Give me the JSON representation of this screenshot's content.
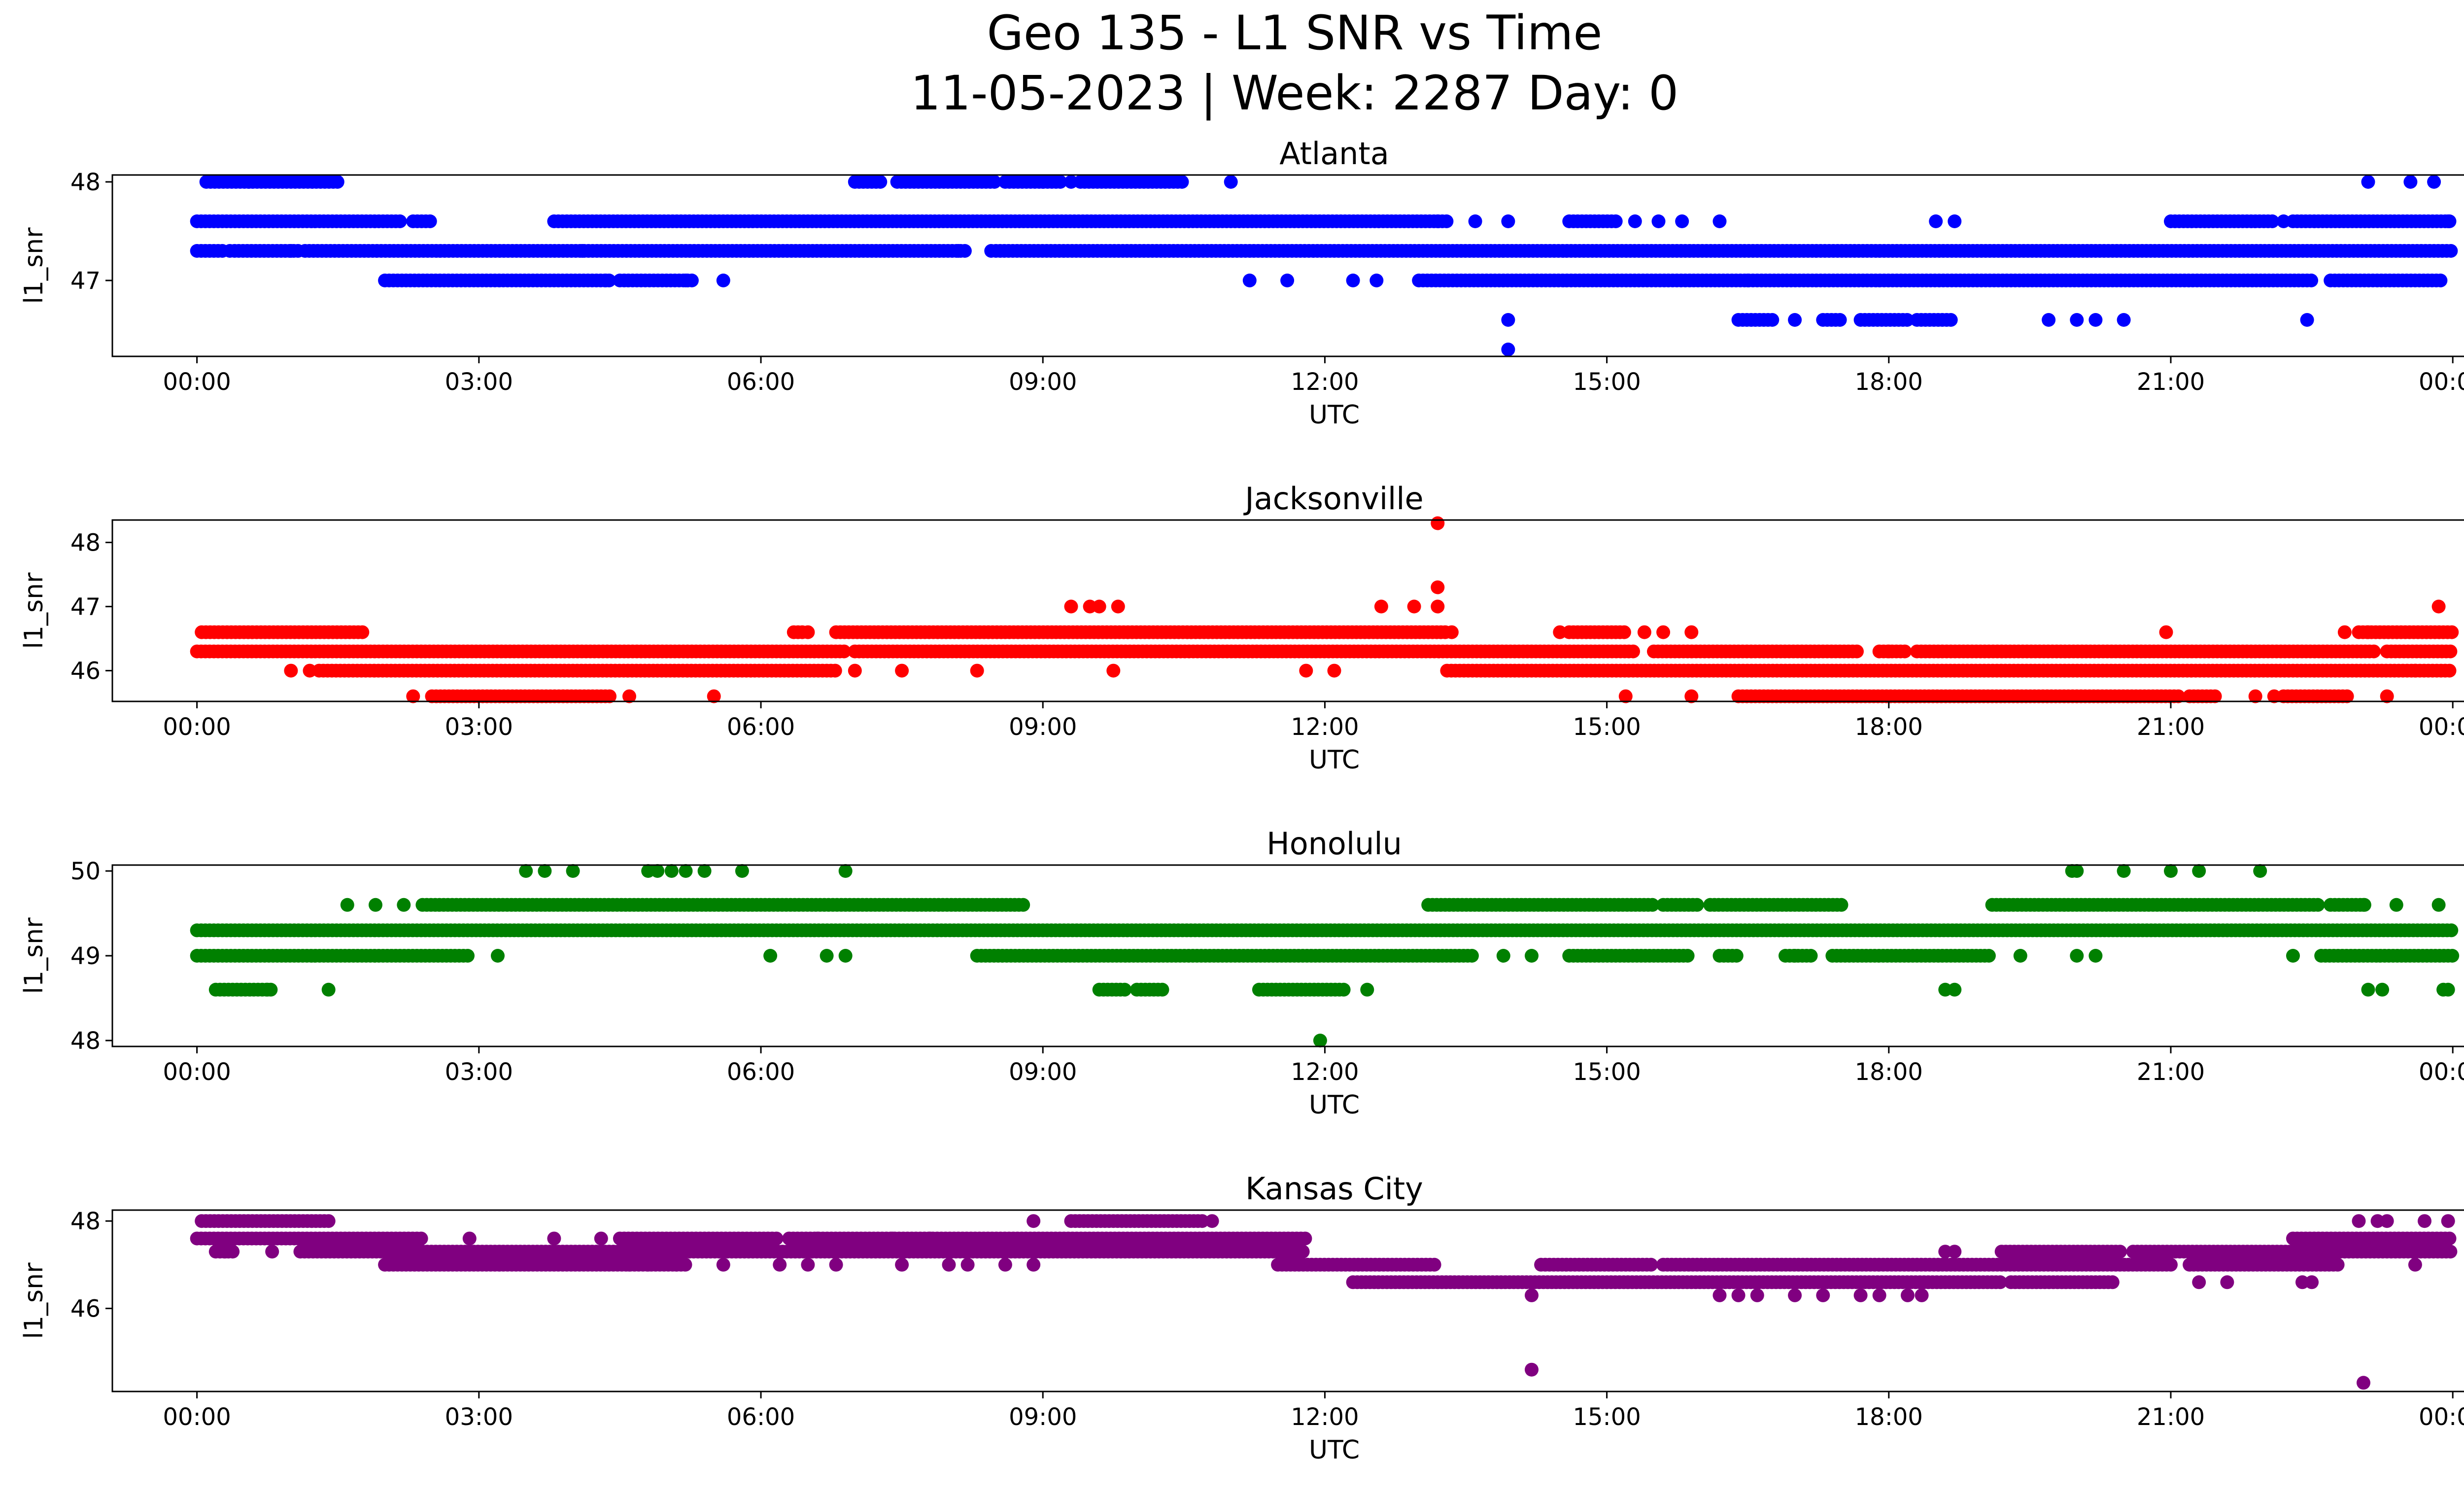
{
  "figure": {
    "title_line1": "Geo 135 - L1 SNR vs Time",
    "title_line2": "11-05-2023 | Week: 2287 Day: 0"
  },
  "chart_data": [
    {
      "type": "scatter",
      "title": "Atlanta",
      "xlabel": "UTC",
      "ylabel": "l1_snr",
      "color": "#0000ff",
      "xlim": [
        -0.9,
        25.1
      ],
      "ylim": [
        46.23,
        48.07
      ],
      "x_ticks": [
        "00:00",
        "03:00",
        "06:00",
        "09:00",
        "12:00",
        "15:00",
        "18:00",
        "21:00",
        "00:00"
      ],
      "y_ticks": [
        47,
        48
      ],
      "bands": [
        {
          "y": 48.0,
          "ranges": [
            [
              0.1,
              1.5
            ],
            [
              7.0,
              7.3
            ],
            [
              7.45,
              8.5
            ],
            [
              8.6,
              9.2
            ],
            [
              9.4,
              10.5
            ]
          ]
        },
        {
          "y": 47.6,
          "ranges": [
            [
              0,
              2.2
            ],
            [
              2.3,
              2.5
            ],
            [
              3.8,
              13.3
            ],
            [
              14.6,
              15.1
            ],
            [
              21.0,
              22.1
            ],
            [
              22.3,
              24.0
            ]
          ]
        },
        {
          "y": 47.3,
          "ranges": [
            [
              0,
              0.3
            ],
            [
              0.4,
              1.1
            ],
            [
              1.15,
              8.2
            ],
            [
              8.5,
              24.0
            ]
          ]
        },
        {
          "y": 47.0,
          "ranges": [
            [
              2.0,
              4.4
            ],
            [
              4.5,
              5.3
            ],
            [
              13.0,
              22.5
            ],
            [
              22.7,
              23.9
            ]
          ]
        },
        {
          "y": 46.6,
          "ranges": [
            [
              16.4,
              16.8
            ],
            [
              17.3,
              17.5
            ],
            [
              17.7,
              18.2
            ],
            [
              18.3,
              18.7
            ]
          ]
        }
      ],
      "points": [
        [
          0.35,
          47.3
        ],
        [
          0.55,
          48.0
        ],
        [
          8.1,
          47.3
        ],
        [
          8.45,
          47.3
        ],
        [
          9.0,
          48.0
        ],
        [
          9.3,
          48.0
        ],
        [
          11.0,
          48.0
        ],
        [
          11.2,
          47.0
        ],
        [
          11.6,
          47.0
        ],
        [
          12.3,
          47.0
        ],
        [
          12.55,
          47.0
        ],
        [
          13.2,
          47.6
        ],
        [
          13.6,
          47.6
        ],
        [
          13.95,
          47.6
        ],
        [
          13.95,
          46.6
        ],
        [
          13.95,
          46.3
        ],
        [
          15.3,
          47.6
        ],
        [
          15.55,
          47.6
        ],
        [
          15.8,
          47.6
        ],
        [
          16.2,
          47.6
        ],
        [
          16.5,
          47.0
        ],
        [
          17.0,
          46.6
        ],
        [
          18.5,
          47.6
        ],
        [
          18.7,
          47.6
        ],
        [
          19.7,
          46.6
        ],
        [
          20.0,
          46.6
        ],
        [
          20.2,
          46.6
        ],
        [
          20.5,
          46.6
        ],
        [
          22.45,
          46.6
        ],
        [
          22.2,
          47.6
        ],
        [
          23.1,
          48.0
        ],
        [
          23.55,
          48.0
        ],
        [
          23.8,
          48.0
        ],
        [
          5.6,
          47.0
        ],
        [
          5.2,
          47.0
        ],
        [
          4.1,
          47.3
        ],
        [
          1.0,
          47.3
        ],
        [
          4.35,
          47.0
        ],
        [
          23.95,
          47.6
        ]
      ]
    },
    {
      "type": "scatter",
      "title": "Jacksonville",
      "xlabel": "UTC",
      "ylabel": "l1_snr",
      "color": "#ff0000",
      "xlim": [
        -0.9,
        25.1
      ],
      "ylim": [
        45.52,
        48.35
      ],
      "x_ticks": [
        "00:00",
        "03:00",
        "06:00",
        "09:00",
        "12:00",
        "15:00",
        "18:00",
        "21:00",
        "00:00"
      ],
      "y_ticks": [
        46,
        47,
        48
      ],
      "bands": [
        {
          "y": 46.6,
          "ranges": [
            [
              0.05,
              1.8
            ],
            [
              6.35,
              6.45
            ],
            [
              6.8,
              13.3
            ],
            [
              14.6,
              15.2
            ],
            [
              23.0,
              24.0
            ]
          ]
        },
        {
          "y": 46.3,
          "ranges": [
            [
              0,
              6.9
            ],
            [
              7.0,
              15.3
            ],
            [
              15.5,
              17.7
            ],
            [
              17.9,
              18.2
            ],
            [
              18.3,
              23.2
            ],
            [
              23.3,
              24.0
            ]
          ]
        },
        {
          "y": 46.0,
          "ranges": [
            [
              1.3,
              6.8
            ],
            [
              13.3,
              24.0
            ]
          ]
        },
        {
          "y": 45.6,
          "ranges": [
            [
              2.5,
              4.4
            ],
            [
              16.4,
              21.1
            ],
            [
              21.2,
              21.5
            ],
            [
              22.2,
              22.9
            ]
          ]
        }
      ],
      "points": [
        [
          9.3,
          47.0
        ],
        [
          9.5,
          47.0
        ],
        [
          9.6,
          47.0
        ],
        [
          9.8,
          47.0
        ],
        [
          12.6,
          47.0
        ],
        [
          12.95,
          47.0
        ],
        [
          13.2,
          47.0
        ],
        [
          13.2,
          47.3
        ],
        [
          13.2,
          48.3
        ],
        [
          1.0,
          46.0
        ],
        [
          1.2,
          46.0
        ],
        [
          2.3,
          45.6
        ],
        [
          4.6,
          45.6
        ],
        [
          5.5,
          45.6
        ],
        [
          6.5,
          46.6
        ],
        [
          7.0,
          46.0
        ],
        [
          7.5,
          46.0
        ],
        [
          8.3,
          46.0
        ],
        [
          9.75,
          46.0
        ],
        [
          11.8,
          46.0
        ],
        [
          12.1,
          46.0
        ],
        [
          14.5,
          46.6
        ],
        [
          15.4,
          46.6
        ],
        [
          15.6,
          46.6
        ],
        [
          15.9,
          46.6
        ],
        [
          15.2,
          45.6
        ],
        [
          15.9,
          45.6
        ],
        [
          18.0,
          46.3
        ],
        [
          20.95,
          46.6
        ],
        [
          21.9,
          45.6
        ],
        [
          22.1,
          45.6
        ],
        [
          22.85,
          46.6
        ],
        [
          23.1,
          46.6
        ],
        [
          23.6,
          46.0
        ],
        [
          23.3,
          45.6
        ],
        [
          23.85,
          47.0
        ],
        [
          13.35,
          46.6
        ]
      ]
    },
    {
      "type": "scatter",
      "title": "Honolulu",
      "xlabel": "UTC",
      "ylabel": "l1_snr",
      "color": "#008000",
      "xlim": [
        -0.9,
        25.1
      ],
      "ylim": [
        47.93,
        50.07
      ],
      "x_ticks": [
        "00:00",
        "03:00",
        "06:00",
        "09:00",
        "12:00",
        "15:00",
        "18:00",
        "21:00",
        "00:00"
      ],
      "y_ticks": [
        48,
        49,
        50
      ],
      "bands": [
        {
          "y": 49.6,
          "ranges": [
            [
              2.4,
              8.8
            ],
            [
              13.1,
              15.5
            ],
            [
              15.6,
              16.0
            ],
            [
              16.1,
              17.5
            ],
            [
              19.1,
              22.6
            ],
            [
              22.7,
              23.1
            ]
          ]
        },
        {
          "y": 49.3,
          "ranges": [
            [
              0,
              24.0
            ]
          ]
        },
        {
          "y": 49.0,
          "ranges": [
            [
              0,
              2.9
            ],
            [
              8.3,
              13.6
            ],
            [
              14.6,
              15.9
            ],
            [
              16.2,
              16.4
            ],
            [
              16.9,
              17.2
            ],
            [
              17.4,
              19.1
            ],
            [
              22.6,
              24.0
            ]
          ]
        },
        {
          "y": 48.6,
          "ranges": [
            [
              0.2,
              0.8
            ],
            [
              9.6,
              9.9
            ],
            [
              10.0,
              10.3
            ],
            [
              11.3,
              12.2
            ]
          ]
        }
      ],
      "points": [
        [
          1.6,
          49.6
        ],
        [
          1.9,
          49.6
        ],
        [
          2.2,
          49.6
        ],
        [
          3.5,
          50.0
        ],
        [
          3.7,
          50.0
        ],
        [
          4.0,
          50.0
        ],
        [
          4.8,
          50.0
        ],
        [
          4.9,
          50.0
        ],
        [
          5.05,
          50.0
        ],
        [
          5.2,
          50.0
        ],
        [
          5.4,
          50.0
        ],
        [
          5.8,
          50.0
        ],
        [
          6.9,
          50.0
        ],
        [
          1.4,
          48.6
        ],
        [
          0.75,
          48.6
        ],
        [
          3.2,
          49.0
        ],
        [
          6.1,
          49.0
        ],
        [
          6.7,
          49.0
        ],
        [
          6.9,
          49.0
        ],
        [
          12.45,
          48.6
        ],
        [
          11.95,
          48.0
        ],
        [
          13.9,
          49.0
        ],
        [
          14.2,
          49.0
        ],
        [
          17.0,
          49.0
        ],
        [
          18.6,
          48.6
        ],
        [
          18.7,
          48.6
        ],
        [
          19.4,
          49.0
        ],
        [
          20.0,
          49.0
        ],
        [
          20.2,
          49.0
        ],
        [
          19.95,
          50.0
        ],
        [
          20.0,
          50.0
        ],
        [
          20.5,
          50.0
        ],
        [
          21.0,
          50.0
        ],
        [
          21.3,
          50.0
        ],
        [
          21.95,
          50.0
        ],
        [
          23.05,
          49.6
        ],
        [
          23.4,
          49.6
        ],
        [
          23.85,
          49.6
        ],
        [
          22.3,
          49.0
        ],
        [
          23.1,
          48.6
        ],
        [
          23.25,
          48.6
        ],
        [
          23.9,
          48.6
        ],
        [
          23.95,
          48.6
        ]
      ]
    },
    {
      "type": "scatter",
      "title": "Kansas City",
      "xlabel": "UTC",
      "ylabel": "l1_snr",
      "color": "#800080",
      "xlim": [
        -0.9,
        25.1
      ],
      "ylim": [
        44.1,
        48.25
      ],
      "x_ticks": [
        "00:00",
        "03:00",
        "06:00",
        "09:00",
        "12:00",
        "15:00",
        "18:00",
        "21:00",
        "00:00"
      ],
      "y_ticks": [
        46,
        48
      ],
      "bands": [
        {
          "y": 48.0,
          "ranges": [
            [
              0.05,
              1.4
            ],
            [
              9.3,
              10.7
            ]
          ]
        },
        {
          "y": 47.6,
          "ranges": [
            [
              0,
              2.4
            ],
            [
              4.5,
              6.2
            ],
            [
              6.3,
              11.8
            ],
            [
              22.3,
              24.0
            ]
          ]
        },
        {
          "y": 47.3,
          "ranges": [
            [
              0.2,
              0.4
            ],
            [
              1.1,
              11.8
            ],
            [
              19.2,
              20.5
            ],
            [
              20.6,
              24.0
            ]
          ]
        },
        {
          "y": 47.0,
          "ranges": [
            [
              2.0,
              5.2
            ],
            [
              11.5,
              13.2
            ],
            [
              14.3,
              15.5
            ],
            [
              15.6,
              21.0
            ],
            [
              21.2,
              22.8
            ]
          ]
        },
        {
          "y": 46.6,
          "ranges": [
            [
              12.3,
              19.2
            ],
            [
              19.3,
              20.4
            ]
          ]
        }
      ],
      "points": [
        [
          8.9,
          48.0
        ],
        [
          10.8,
          48.0
        ],
        [
          2.9,
          47.6
        ],
        [
          3.8,
          47.6
        ],
        [
          4.3,
          47.6
        ],
        [
          6.6,
          47.6
        ],
        [
          7.4,
          47.6
        ],
        [
          7.8,
          47.6
        ],
        [
          5.6,
          47.0
        ],
        [
          5.1,
          47.0
        ],
        [
          6.2,
          47.0
        ],
        [
          6.5,
          47.0
        ],
        [
          7.5,
          47.0
        ],
        [
          8.0,
          47.0
        ],
        [
          8.2,
          47.0
        ],
        [
          8.6,
          47.0
        ],
        [
          8.9,
          47.0
        ],
        [
          4.8,
          47.0
        ],
        [
          4.6,
          47.0
        ],
        [
          6.8,
          47.0
        ],
        [
          14.2,
          46.3
        ],
        [
          14.2,
          44.6
        ],
        [
          16.2,
          46.3
        ],
        [
          16.4,
          46.3
        ],
        [
          16.6,
          46.3
        ],
        [
          17.0,
          46.3
        ],
        [
          17.3,
          46.3
        ],
        [
          17.7,
          46.3
        ],
        [
          17.9,
          46.3
        ],
        [
          18.2,
          46.3
        ],
        [
          18.35,
          46.3
        ],
        [
          18.6,
          47.3
        ],
        [
          18.7,
          47.3
        ],
        [
          21.3,
          46.6
        ],
        [
          21.6,
          46.6
        ],
        [
          22.4,
          46.6
        ],
        [
          22.5,
          46.6
        ],
        [
          23.0,
          48.0
        ],
        [
          23.2,
          48.0
        ],
        [
          23.3,
          48.0
        ],
        [
          23.7,
          48.0
        ],
        [
          23.95,
          48.0
        ],
        [
          23.6,
          47.0
        ],
        [
          23.05,
          44.3
        ],
        [
          0.3,
          47.3
        ],
        [
          0.8,
          47.3
        ]
      ]
    }
  ]
}
